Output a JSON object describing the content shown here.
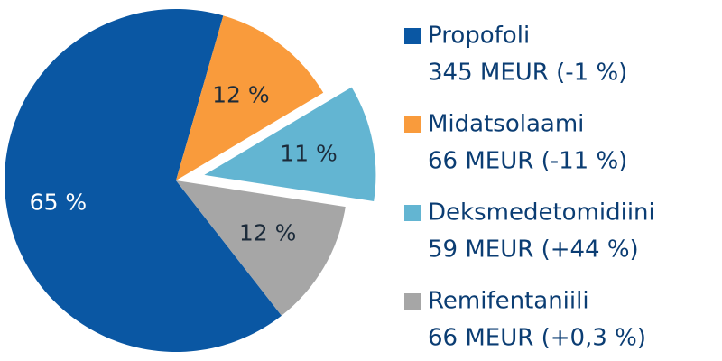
{
  "chart_data": {
    "type": "pie",
    "categories": [
      "Propofoli",
      "Midatsolaami",
      "Deksmedetomidiini",
      "Remifentaniili"
    ],
    "values": [
      65,
      12,
      11,
      12
    ],
    "value_labels": [
      "65 %",
      "12 %",
      "11 %",
      "12 %"
    ],
    "legend_details": [
      "345 MEUR (-1 %)",
      "66 MEUR (-11 %)",
      "59 MEUR (+44 %)",
      "66 MEUR (+0,3 %)"
    ],
    "colors": [
      "#0a57a3",
      "#f99b3c",
      "#63b5d2",
      "#a6a6a6"
    ],
    "exploded": [
      "Deksmedetomidiini"
    ],
    "legend": "right"
  }
}
